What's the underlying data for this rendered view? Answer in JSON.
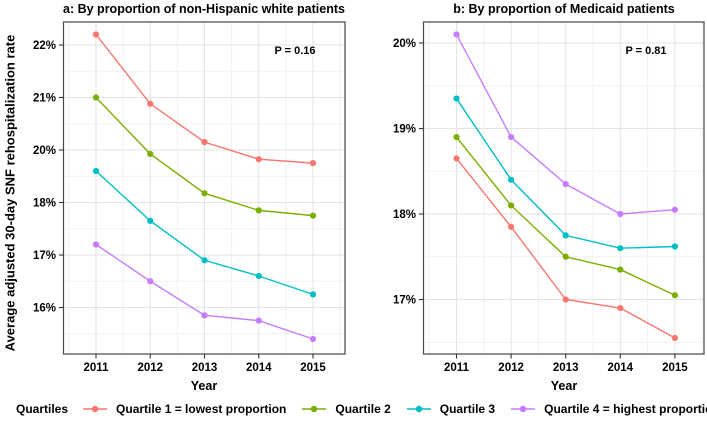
{
  "figure": {
    "y_axis_title": "Average adjusted 30-day SNF rehospitalization rate",
    "legend": {
      "position": "bottom",
      "title": "Quartiles",
      "items": [
        {
          "label": "Quartile 1 = lowest proportion",
          "color": "#F8766D"
        },
        {
          "label": "Quartile 2",
          "color": "#7CAE00"
        },
        {
          "label": "Quartile 3",
          "color": "#00BFC4"
        },
        {
          "label": "Quartile 4 = highest proportion",
          "color": "#C77CFF"
        }
      ]
    },
    "grid": "on",
    "colors": {
      "grid_major": "#e3e3e3",
      "grid_minor": "#f1f1f1",
      "panel_border": "#454545",
      "text": "#000000"
    }
  },
  "chart_data": [
    {
      "id": "a",
      "type": "line",
      "title": "a: By proportion of non-Hispanic white patients",
      "annotation": "P = 0.16",
      "xlabel": "Year",
      "x": [
        2011,
        2012,
        2013,
        2014,
        2015
      ],
      "x_tick_labels": [
        "2011",
        "2012",
        "2013",
        "2014",
        "2015"
      ],
      "y_tick_labels": [
        "22%",
        "21%",
        "20%",
        "18%",
        "17%",
        "16%"
      ],
      "y_tick_values": [
        22,
        21,
        20,
        18,
        17,
        16
      ],
      "series": [
        {
          "name": "Quartile 1 = lowest proportion",
          "color": "#F8766D",
          "values": [
            22.2,
            20.88,
            20.15,
            19.65,
            19.5
          ]
        },
        {
          "name": "Quartile 2",
          "color": "#7CAE00",
          "values": [
            21.0,
            19.85,
            18.35,
            17.85,
            17.75
          ]
        },
        {
          "name": "Quartile 3",
          "color": "#00BFC4",
          "values": [
            19.2,
            17.65,
            16.9,
            16.6,
            16.25
          ]
        },
        {
          "name": "Quartile 4 = highest proportion",
          "color": "#C77CFF",
          "values": [
            17.2,
            16.5,
            15.85,
            15.75,
            15.4
          ]
        }
      ]
    },
    {
      "id": "b",
      "type": "line",
      "title": "b: By proportion of Medicaid patients",
      "annotation": "P = 0.81",
      "xlabel": "Year",
      "x": [
        2011,
        2012,
        2013,
        2014,
        2015
      ],
      "x_tick_labels": [
        "2011",
        "2012",
        "2013",
        "2014",
        "2015"
      ],
      "y_tick_labels": [
        "20%",
        "19%",
        "18%",
        "17%"
      ],
      "y_tick_values": [
        20,
        19,
        18,
        17
      ],
      "series": [
        {
          "name": "Quartile 1 = lowest proportion",
          "color": "#F8766D",
          "values": [
            18.65,
            17.85,
            17.0,
            16.9,
            16.55
          ]
        },
        {
          "name": "Quartile 2",
          "color": "#7CAE00",
          "values": [
            18.9,
            18.1,
            17.5,
            17.35,
            17.05
          ]
        },
        {
          "name": "Quartile 3",
          "color": "#00BFC4",
          "values": [
            19.35,
            18.4,
            17.75,
            17.6,
            17.62
          ]
        },
        {
          "name": "Quartile 4 = highest proportion",
          "color": "#C77CFF",
          "values": [
            20.1,
            18.9,
            18.35,
            18.0,
            18.05
          ]
        }
      ]
    }
  ]
}
